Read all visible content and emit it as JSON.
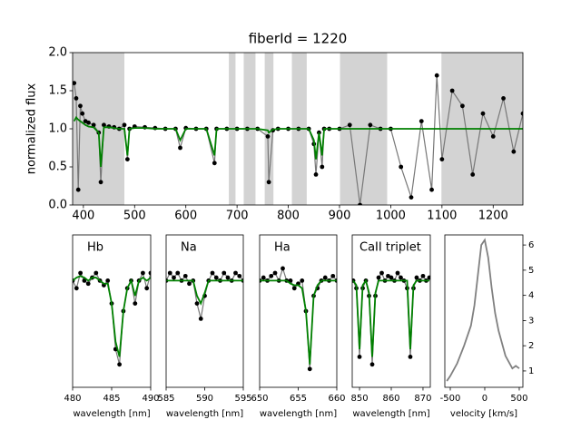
{
  "chart_data": [
    {
      "type": "line",
      "title": "fiberId = 1220",
      "ylabel": "normalized flux",
      "xlim": [
        379,
        1258
      ],
      "ylim": [
        0,
        2.0
      ],
      "xticks": [
        400,
        500,
        600,
        700,
        800,
        900,
        1000,
        1100,
        1200
      ],
      "yticks": [
        {
          "value": 0,
          "label": "0.0"
        },
        {
          "value": 0.5,
          "label": "0.5"
        },
        {
          "value": 1.0,
          "label": "1.0"
        },
        {
          "value": 1.5,
          "label": "1.5"
        },
        {
          "value": 2.0,
          "label": "2.0"
        }
      ],
      "masked_regions": [
        [
          379,
          480
        ],
        [
          684,
          697
        ],
        [
          713,
          736
        ],
        [
          754,
          771
        ],
        [
          807,
          836
        ],
        [
          901,
          993
        ],
        [
          1099,
          1258
        ]
      ],
      "x": [
        382,
        386,
        390,
        394,
        398,
        404,
        410,
        420,
        430,
        434,
        440,
        450,
        460,
        470,
        480,
        486,
        490,
        500,
        520,
        540,
        560,
        580,
        589,
        600,
        620,
        640,
        656,
        660,
        680,
        700,
        720,
        740,
        760,
        762,
        770,
        780,
        800,
        820,
        840,
        850,
        854,
        860,
        866,
        870,
        880,
        900,
        920,
        940,
        960,
        980,
        1000,
        1020,
        1040,
        1060,
        1080,
        1090,
        1100,
        1120,
        1140,
        1160,
        1180,
        1200,
        1220,
        1240,
        1258
      ],
      "series": [
        {
          "color": "#000000",
          "line_color": "#777777",
          "marker": true,
          "values": [
            1.6,
            1.4,
            0.2,
            1.3,
            1.2,
            1.1,
            1.08,
            1.05,
            0.95,
            0.3,
            1.05,
            1.03,
            1.02,
            1.0,
            1.05,
            0.6,
            1.0,
            1.03,
            1.02,
            1.01,
            1.0,
            1.0,
            0.75,
            1.01,
            1.0,
            1.0,
            0.55,
            1.0,
            1.0,
            1.0,
            1.0,
            1.0,
            0.9,
            0.3,
            0.98,
            1.0,
            1.0,
            1.0,
            1.0,
            0.8,
            0.4,
            0.95,
            0.5,
            1.0,
            1.0,
            1.0,
            1.05,
            0.0,
            1.05,
            1.0,
            1.0,
            0.5,
            0.1,
            1.1,
            0.2,
            1.7,
            0.6,
            1.5,
            1.3,
            0.4,
            1.2,
            0.9,
            1.4,
            0.7,
            1.2
          ]
        },
        {
          "color": "#008000",
          "marker": false,
          "values": [
            1.1,
            1.15,
            1.12,
            1.1,
            1.08,
            1.05,
            1.03,
            1.02,
            0.95,
            0.5,
            1.02,
            1.02,
            1.01,
            1.0,
            1.0,
            0.65,
            1.0,
            1.01,
            1.01,
            1.0,
            1.0,
            1.0,
            0.85,
            1.0,
            1.0,
            1.0,
            0.65,
            1.0,
            1.0,
            1.0,
            1.0,
            1.0,
            0.98,
            0.95,
            0.99,
            1.0,
            1.0,
            1.0,
            1.0,
            0.85,
            0.6,
            0.95,
            0.65,
            1.0,
            1.0,
            1.0,
            1.0,
            1.0,
            1.0,
            1.0,
            1.0,
            1.0,
            1.0,
            1.0,
            1.0,
            1.0,
            1.0,
            1.0,
            1.0,
            1.0,
            1.0,
            1.0,
            1.0,
            1.0,
            1.0
          ]
        }
      ]
    },
    {
      "type": "line",
      "annotation": "Hb",
      "xlabel": "wavelength [nm]",
      "xlim": [
        480,
        490
      ],
      "ylim": [
        0.3,
        1.3
      ],
      "xticks": [
        480,
        485,
        490
      ],
      "x": [
        480,
        480.5,
        481,
        481.5,
        482,
        482.5,
        483,
        483.5,
        484,
        484.5,
        485,
        485.5,
        486,
        486.5,
        487,
        487.5,
        488,
        488.5,
        489,
        489.5,
        490
      ],
      "series": [
        {
          "color": "#000000",
          "line_color": "#777777",
          "marker": true,
          "values": [
            1.0,
            0.95,
            1.05,
            1.0,
            0.98,
            1.02,
            1.05,
            1.0,
            0.97,
            1.0,
            0.85,
            0.55,
            0.45,
            0.8,
            0.95,
            1.0,
            0.85,
            1.0,
            1.05,
            0.95,
            1.05
          ]
        },
        {
          "color": "#008000",
          "marker": false,
          "values": [
            1.0,
            1.02,
            1.03,
            1.02,
            1.0,
            1.02,
            1.02,
            1.0,
            0.98,
            0.98,
            0.85,
            0.6,
            0.5,
            0.8,
            0.95,
            1.0,
            0.9,
            1.0,
            1.02,
            1.0,
            1.02
          ]
        }
      ]
    },
    {
      "type": "line",
      "annotation": "Na",
      "xlabel": "wavelength [nm]",
      "xlim": [
        585,
        595
      ],
      "ylim": [
        0.3,
        1.3
      ],
      "xticks": [
        585,
        590,
        595
      ],
      "x": [
        585,
        585.5,
        586,
        586.5,
        587,
        587.5,
        588,
        588.5,
        589,
        589.5,
        590,
        590.5,
        591,
        591.5,
        592,
        592.5,
        593,
        593.5,
        594,
        594.5,
        595
      ],
      "series": [
        {
          "color": "#000000",
          "line_color": "#777777",
          "marker": true,
          "values": [
            1.0,
            1.05,
            1.02,
            1.05,
            1.0,
            1.03,
            0.98,
            1.0,
            0.85,
            0.75,
            0.9,
            1.0,
            1.05,
            1.02,
            1.0,
            1.05,
            1.02,
            1.0,
            1.05,
            1.03,
            1.0
          ]
        },
        {
          "color": "#008000",
          "marker": false,
          "values": [
            1.0,
            1.0,
            1.0,
            1.0,
            1.0,
            1.0,
            1.0,
            1.0,
            0.9,
            0.85,
            0.92,
            1.0,
            1.0,
            1.0,
            1.0,
            1.0,
            1.0,
            1.0,
            1.0,
            1.0,
            1.0
          ]
        }
      ]
    },
    {
      "type": "line",
      "annotation": "Ha",
      "xlabel": "wavelength [nm]",
      "xlim": [
        650,
        660
      ],
      "ylim": [
        0.3,
        1.3
      ],
      "xticks": [
        650,
        655,
        660
      ],
      "x": [
        650,
        650.5,
        651,
        651.5,
        652,
        652.5,
        653,
        653.5,
        654,
        654.5,
        655,
        655.5,
        656,
        656.5,
        657,
        657.5,
        658,
        658.5,
        659,
        659.5,
        660
      ],
      "series": [
        {
          "color": "#000000",
          "line_color": "#777777",
          "marker": true,
          "values": [
            1.0,
            1.02,
            1.0,
            1.03,
            1.05,
            1.0,
            1.08,
            1.0,
            1.0,
            0.95,
            0.98,
            1.0,
            0.8,
            0.42,
            0.9,
            0.95,
            1.0,
            1.02,
            1.0,
            1.03,
            1.0
          ]
        },
        {
          "color": "#008000",
          "marker": false,
          "values": [
            1.0,
            1.0,
            1.0,
            1.0,
            1.0,
            1.0,
            1.0,
            1.0,
            0.98,
            0.97,
            0.97,
            0.95,
            0.8,
            0.45,
            0.9,
            0.97,
            1.0,
            1.0,
            1.0,
            1.0,
            1.0
          ]
        }
      ]
    },
    {
      "type": "line",
      "annotation": "CaII triplet",
      "xlabel": "wavelength [nm]",
      "xlim": [
        847.7,
        872.3
      ],
      "ylim": [
        0.3,
        1.3
      ],
      "xticks": [
        850,
        860,
        870
      ],
      "x": [
        848,
        849,
        850,
        851,
        852,
        853,
        854,
        855,
        856,
        857,
        858,
        859,
        860,
        861,
        862,
        863,
        864,
        865,
        866,
        867,
        868,
        869,
        870,
        871,
        872
      ],
      "series": [
        {
          "color": "#000000",
          "line_color": "#777777",
          "marker": true,
          "values": [
            1.0,
            0.95,
            0.5,
            0.95,
            1.0,
            0.9,
            0.45,
            0.9,
            1.02,
            1.05,
            1.0,
            1.03,
            1.02,
            1.0,
            1.05,
            1.02,
            1.0,
            0.95,
            0.5,
            0.95,
            1.02,
            1.0,
            1.03,
            1.0,
            1.02
          ]
        },
        {
          "color": "#008000",
          "marker": false,
          "values": [
            1.0,
            0.97,
            0.55,
            0.97,
            1.0,
            0.92,
            0.5,
            0.92,
            1.0,
            1.0,
            1.0,
            1.0,
            1.0,
            1.0,
            1.0,
            1.0,
            1.0,
            1.0,
            0.55,
            0.97,
            1.0,
            1.0,
            1.0,
            1.0,
            1.0
          ]
        }
      ]
    },
    {
      "type": "line",
      "xlabel": "velocity [km/s]",
      "xlim": [
        -579,
        553
      ],
      "ylim": [
        0.35,
        6.4
      ],
      "xticks": [
        -500,
        0,
        500
      ],
      "yticks": [
        1,
        2,
        3,
        4,
        5,
        6
      ],
      "yaxis_side": "right",
      "x": [
        -550,
        -500,
        -400,
        -300,
        -200,
        -150,
        -100,
        -50,
        0,
        50,
        100,
        150,
        200,
        300,
        400,
        450,
        500
      ],
      "series": [
        {
          "color": "#808080",
          "marker": false,
          "values": [
            0.6,
            0.8,
            1.3,
            2.0,
            2.8,
            3.6,
            4.8,
            6.0,
            6.2,
            5.5,
            4.3,
            3.3,
            2.6,
            1.6,
            1.1,
            1.2,
            1.1
          ]
        }
      ]
    }
  ]
}
